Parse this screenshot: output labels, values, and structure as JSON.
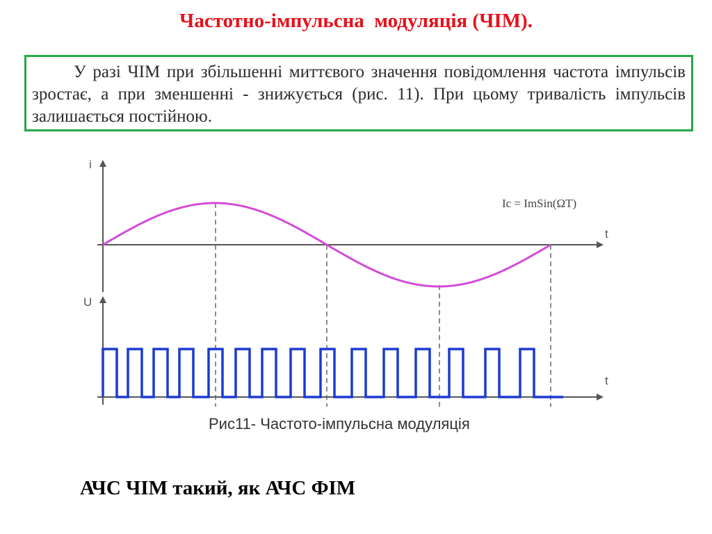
{
  "slide": {
    "title": "Частотно-імпульсна  модуляція (ЧІМ).",
    "definition": "У разі ЧІМ при збільшенні миттєвого значення повідомлення частота імпульсів зростає, а при зменшенні - знижується (рис. 11). При цьому тривалість імпульсів залишається постійною.",
    "bottom_note": "АЧС ЧІМ такий, як АЧС ФІМ"
  },
  "figure": {
    "caption": "Рис11- Частото-імпульсна модуляція",
    "top_axis": {
      "y_label": "i",
      "x_label": "t"
    },
    "bottom_axis": {
      "y_label": "U",
      "x_label": "t"
    },
    "formula": "Ic = ImSin(ΩT)",
    "colors": {
      "signal": "#d24bd6",
      "pulses": "#1c3ad4",
      "axes": "#555555",
      "border": "#26a646",
      "title": "#e8101a"
    }
  }
}
